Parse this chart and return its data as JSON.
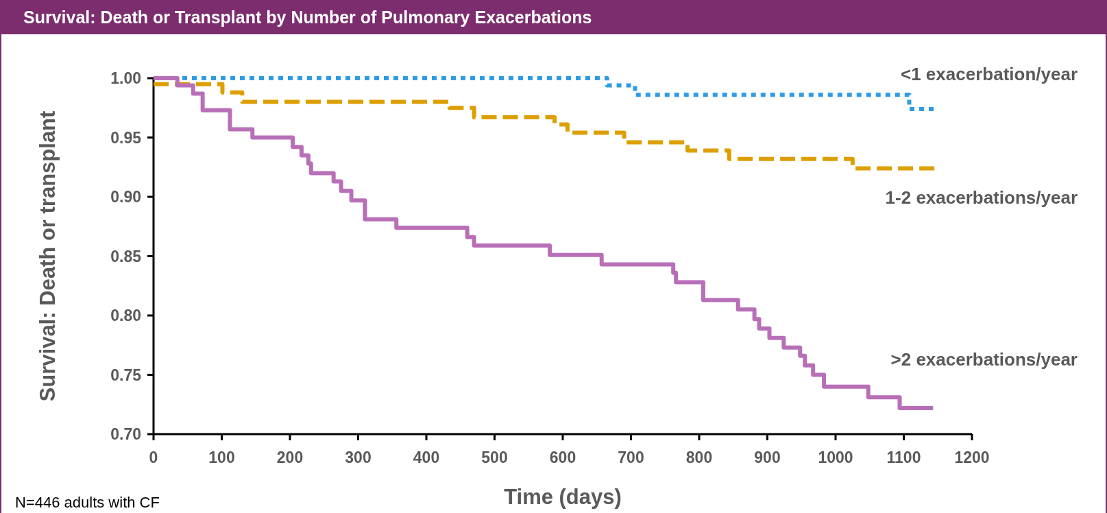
{
  "chart_data": {
    "type": "step",
    "title": "Survival: Death or Transplant by Number of Pulmonary Exacerbations",
    "xlabel": "Time (days)",
    "ylabel": "Survival: Death or transplant",
    "annotations": [
      "N=446 adults with CF"
    ],
    "xlim": [
      0,
      1200
    ],
    "xticks": [
      0,
      100,
      200,
      300,
      400,
      500,
      600,
      700,
      800,
      900,
      1000,
      1100,
      1200
    ],
    "ylim": [
      0.7,
      1.0
    ],
    "yticks": [
      {
        "value": 0.7,
        "label": "0.70"
      },
      {
        "value": 0.75,
        "label": "0.75"
      },
      {
        "value": 0.8,
        "label": "0.80"
      },
      {
        "value": 0.85,
        "label": "0.85"
      },
      {
        "value": 0.9,
        "label": "0.90"
      },
      {
        "value": 0.95,
        "label": "0.95"
      },
      {
        "value": 1.0,
        "label": "1.00"
      }
    ],
    "grid": false,
    "series": [
      {
        "name": "<1 exacerbation/year",
        "color": "#2e9be6",
        "line_style": "dotted",
        "x": [
          0,
          665,
          706,
          1108,
          1145
        ],
        "values": [
          1.0,
          0.994,
          0.986,
          0.974,
          0.974
        ]
      },
      {
        "name": "1-2 exacerbations/year",
        "color": "#dd9f00",
        "line_style": "dashed",
        "x": [
          0,
          101,
          130,
          434,
          470,
          588,
          607,
          690,
          783,
          844,
          1025,
          1145
        ],
        "values": [
          0.995,
          0.988,
          0.98,
          0.975,
          0.967,
          0.961,
          0.954,
          0.946,
          0.939,
          0.932,
          0.924,
          0.924
        ]
      },
      {
        "name": ">2 exacerbations/year",
        "color": "#b86fb8",
        "line_style": "solid",
        "x": [
          0,
          35,
          58,
          72,
          112,
          145,
          204,
          217,
          227,
          231,
          264,
          275,
          290,
          310,
          356,
          460,
          470,
          581,
          657,
          762,
          766,
          806,
          857,
          881,
          888,
          903,
          924,
          948,
          955,
          967,
          983,
          1048,
          1094,
          1143
        ],
        "values": [
          1.0,
          0.994,
          0.987,
          0.973,
          0.957,
          0.95,
          0.942,
          0.935,
          0.928,
          0.92,
          0.913,
          0.905,
          0.897,
          0.881,
          0.874,
          0.866,
          0.859,
          0.851,
          0.843,
          0.836,
          0.828,
          0.813,
          0.805,
          0.797,
          0.789,
          0.781,
          0.773,
          0.766,
          0.758,
          0.75,
          0.74,
          0.731,
          0.722,
          0.722
        ]
      }
    ]
  }
}
